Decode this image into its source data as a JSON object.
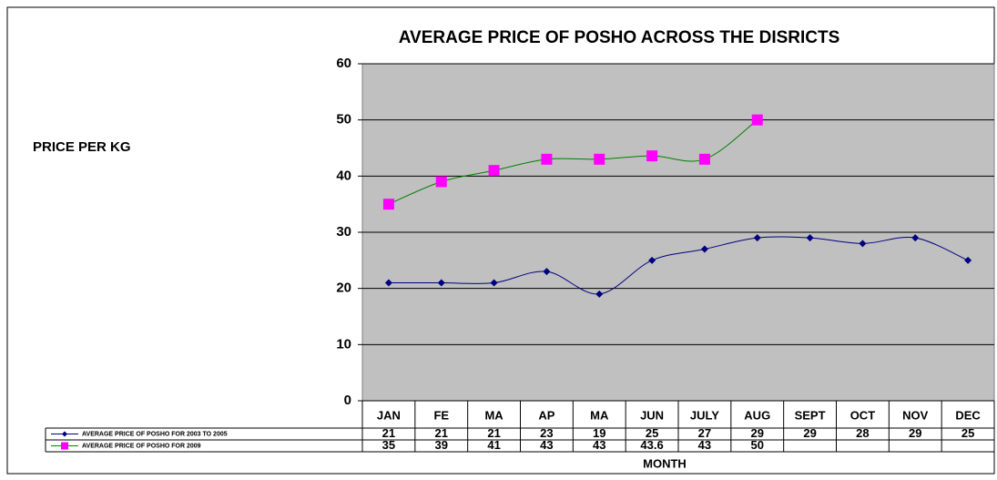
{
  "chart_data": {
    "type": "line",
    "title": "AVERAGE PRICE OF POSHO ACROSS THE DISRICTS",
    "y_label": "PRICE PER KG",
    "x_label": "MONTH",
    "categories": [
      "JAN",
      "FE",
      "MA",
      "AP",
      "MA",
      "JUN",
      "JULY",
      "AUG",
      "SEPT",
      "OCT",
      "NOV",
      "DEC"
    ],
    "series": [
      {
        "name": "AVERAGE PRICE OF POSHO FOR 2003 TO 2005",
        "color": "#000080",
        "line_color": "#000080",
        "marker": "diamond",
        "values": [
          21,
          21,
          21,
          23,
          19,
          25,
          27,
          29,
          29,
          28,
          29,
          25
        ]
      },
      {
        "name": "AVERAGE PRICE OF POSHO FOR 2009",
        "color": "#ff00ff",
        "line_color": "#008000",
        "marker": "square",
        "values": [
          35,
          39,
          41,
          43,
          43,
          43.6,
          43,
          50,
          null,
          null,
          null,
          null
        ]
      }
    ],
    "ylim": [
      0,
      60
    ],
    "yticks": [
      0,
      10,
      20,
      30,
      40,
      50,
      60
    ],
    "grid": true,
    "smooth": true,
    "data_table": true
  }
}
